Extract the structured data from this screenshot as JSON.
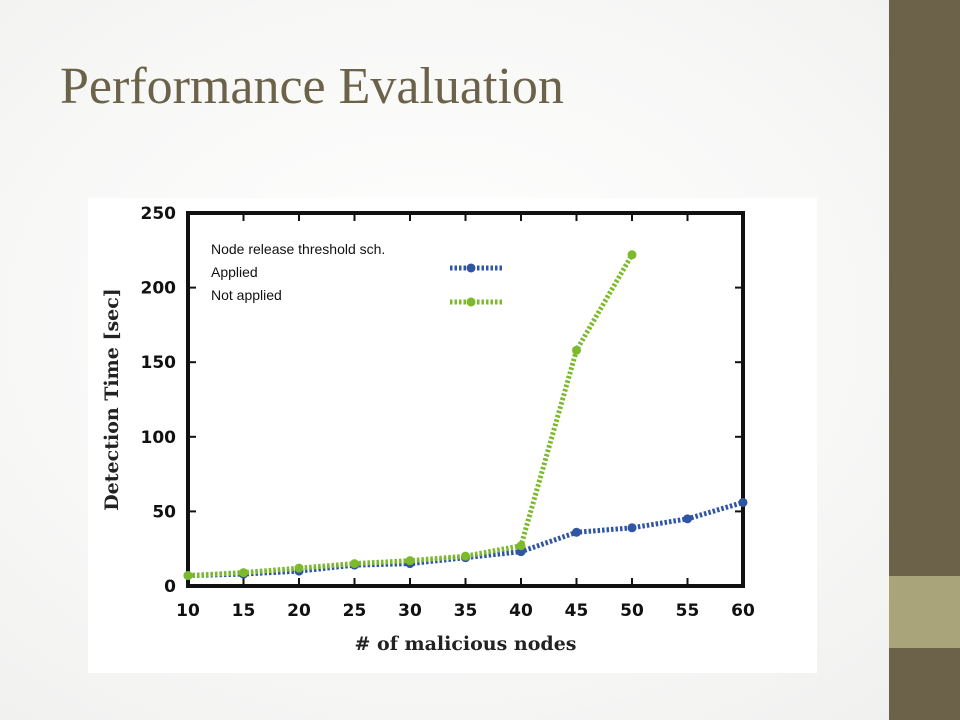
{
  "slide": {
    "title": "Performance Evaluation"
  },
  "colors": {
    "title": "#6b6249",
    "sidebar": "#6b6249",
    "sidebar_accent": "#aaa47a"
  },
  "chart_data": {
    "type": "line",
    "xlabel": "# of malicious nodes",
    "ylabel": "Detection Time [sec]",
    "xlim": [
      10,
      60
    ],
    "ylim": [
      0,
      250
    ],
    "x_ticks": [
      10,
      15,
      20,
      25,
      30,
      35,
      40,
      45,
      50,
      55,
      60
    ],
    "y_ticks": [
      0,
      50,
      100,
      150,
      200,
      250
    ],
    "legend_title": "Node release threshold sch.",
    "legend_position": "top-left",
    "grid": false,
    "series": [
      {
        "name": "Applied",
        "color": "#2f55a4",
        "style": "dotted",
        "x": [
          10,
          15,
          20,
          25,
          30,
          35,
          40,
          45,
          50,
          55,
          60
        ],
        "y": [
          7,
          8,
          10,
          14,
          15,
          19,
          23,
          36,
          39,
          45,
          56
        ]
      },
      {
        "name": "Not applied",
        "color": "#7cba2c",
        "style": "dotted",
        "x": [
          10,
          15,
          20,
          25,
          30,
          35,
          40,
          45,
          50
        ],
        "y": [
          7,
          9,
          12,
          15,
          17,
          20,
          27,
          158,
          222
        ]
      }
    ]
  }
}
